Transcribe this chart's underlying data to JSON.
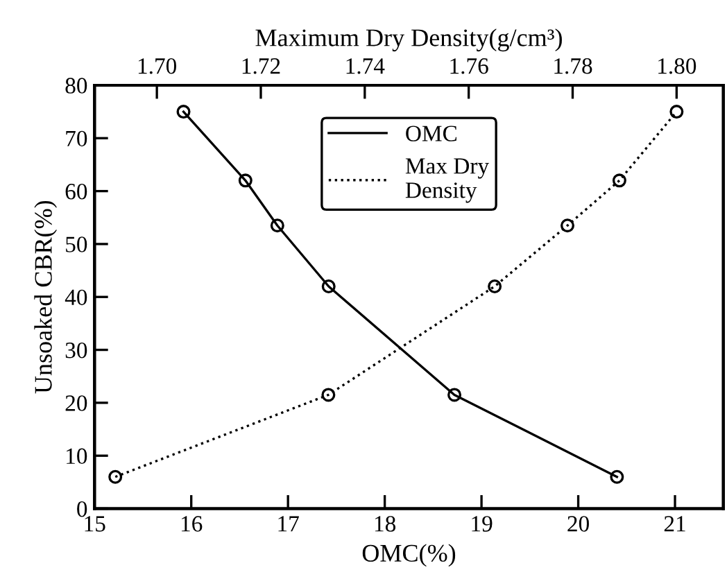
{
  "chart_data": {
    "type": "line",
    "xlabel": "OMC(%)",
    "ylabel": "Unsoaked CBR(%)",
    "x2label": "Maximum Dry Density(g/cm³)",
    "xlim": [
      15,
      21.5
    ],
    "xticks": [
      15,
      16,
      17,
      18,
      19,
      20,
      21
    ],
    "x2lim": [
      1.688,
      1.809
    ],
    "x2ticks": [
      {
        "value": 1.7,
        "label": "1.70"
      },
      {
        "value": 1.72,
        "label": "1.72"
      },
      {
        "value": 1.74,
        "label": "1.74"
      },
      {
        "value": 1.76,
        "label": "1.76"
      },
      {
        "value": 1.78,
        "label": "1.78"
      },
      {
        "value": 1.8,
        "label": "1.80"
      }
    ],
    "ylim": [
      0,
      80
    ],
    "yticks": [
      0,
      10,
      20,
      30,
      40,
      50,
      60,
      70,
      80
    ],
    "marker": "circle",
    "legend": "top",
    "grid": false,
    "series": [
      {
        "name": "OMC",
        "color": "#000000",
        "line_style": "solid",
        "x": [
          15.92,
          16.56,
          16.89,
          17.42,
          18.72,
          20.4
        ],
        "values": [
          75,
          62,
          53.5,
          42,
          21.5,
          6
        ]
      },
      {
        "name": "Max Dry\nDensity",
        "color": "#000000",
        "line_style": "dotted",
        "axis": "x2",
        "x": [
          1.692,
          1.733,
          1.765,
          1.779,
          1.789,
          1.8
        ],
        "values": [
          6,
          21.5,
          42,
          53.5,
          62,
          75
        ]
      }
    ]
  }
}
